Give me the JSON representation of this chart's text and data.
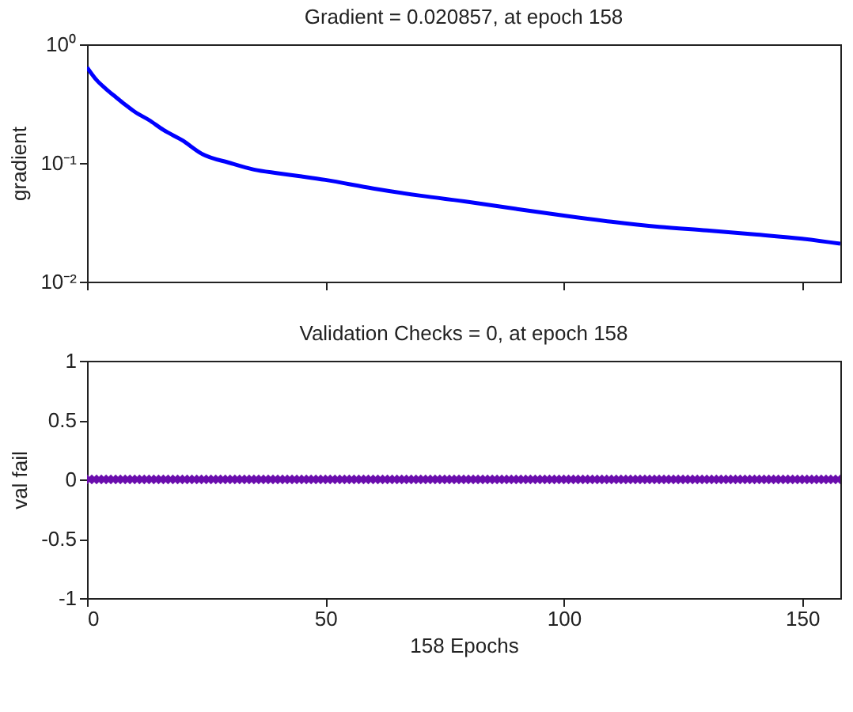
{
  "chart_data": [
    {
      "type": "line",
      "title": "Gradient = 0.020857, at epoch 158",
      "ylabel": "gradient",
      "log": "y",
      "xlim": [
        0,
        158
      ],
      "xticks": [
        0,
        50,
        100,
        150
      ],
      "ylim": [
        0.01,
        1
      ],
      "yticks": [
        {
          "value": 0.01,
          "label": "10⁻²"
        },
        {
          "value": 0.1,
          "label": "10⁻¹"
        },
        {
          "value": 1,
          "label": "10⁰"
        }
      ],
      "tick_labels": "y",
      "grid": false,
      "series": [
        {
          "color": "#0000ff",
          "x": [
            0,
            2,
            4,
            6,
            8,
            10,
            13,
            16,
            20,
            24,
            30,
            35,
            40,
            45,
            50,
            60,
            70,
            80,
            90,
            100,
            110,
            120,
            130,
            140,
            150,
            158
          ],
          "values": [
            0.64,
            0.5,
            0.42,
            0.36,
            0.31,
            0.27,
            0.23,
            0.19,
            0.155,
            0.12,
            0.1,
            0.088,
            0.082,
            0.077,
            0.072,
            0.061,
            0.053,
            0.047,
            0.041,
            0.036,
            0.032,
            0.029,
            0.027,
            0.025,
            0.023,
            0.020857
          ]
        }
      ]
    },
    {
      "type": "scatter",
      "title": "Validation Checks = 0, at epoch 158",
      "xlabel": "158 Epochs",
      "ylabel": "val fail",
      "xlim": [
        0,
        158
      ],
      "xticks": [
        0,
        50,
        100,
        150
      ],
      "ylim": [
        -1,
        1
      ],
      "yticks": [
        -1,
        -0.5,
        0,
        0.5,
        1
      ],
      "grid": false,
      "marker": "diamond",
      "series": [
        {
          "color": "#6a0dad",
          "x": [
            0,
            1,
            2,
            3,
            4,
            5,
            6,
            7,
            8,
            9,
            10,
            11,
            12,
            13,
            14,
            15,
            16,
            17,
            18,
            19,
            20,
            21,
            22,
            23,
            24,
            25,
            26,
            27,
            28,
            29,
            30,
            31,
            32,
            33,
            34,
            35,
            36,
            37,
            38,
            39,
            40,
            41,
            42,
            43,
            44,
            45,
            46,
            47,
            48,
            49,
            50,
            51,
            52,
            53,
            54,
            55,
            56,
            57,
            58,
            59,
            60,
            61,
            62,
            63,
            64,
            65,
            66,
            67,
            68,
            69,
            70,
            71,
            72,
            73,
            74,
            75,
            76,
            77,
            78,
            79,
            80,
            81,
            82,
            83,
            84,
            85,
            86,
            87,
            88,
            89,
            90,
            91,
            92,
            93,
            94,
            95,
            96,
            97,
            98,
            99,
            100,
            101,
            102,
            103,
            104,
            105,
            106,
            107,
            108,
            109,
            110,
            111,
            112,
            113,
            114,
            115,
            116,
            117,
            118,
            119,
            120,
            121,
            122,
            123,
            124,
            125,
            126,
            127,
            128,
            129,
            130,
            131,
            132,
            133,
            134,
            135,
            136,
            137,
            138,
            139,
            140,
            141,
            142,
            143,
            144,
            145,
            146,
            147,
            148,
            149,
            150,
            151,
            152,
            153,
            154,
            155,
            156,
            157,
            158
          ],
          "values": [
            0,
            0,
            0,
            0,
            0,
            0,
            0,
            0,
            0,
            0,
            0,
            0,
            0,
            0,
            0,
            0,
            0,
            0,
            0,
            0,
            0,
            0,
            0,
            0,
            0,
            0,
            0,
            0,
            0,
            0,
            0,
            0,
            0,
            0,
            0,
            0,
            0,
            0,
            0,
            0,
            0,
            0,
            0,
            0,
            0,
            0,
            0,
            0,
            0,
            0,
            0,
            0,
            0,
            0,
            0,
            0,
            0,
            0,
            0,
            0,
            0,
            0,
            0,
            0,
            0,
            0,
            0,
            0,
            0,
            0,
            0,
            0,
            0,
            0,
            0,
            0,
            0,
            0,
            0,
            0,
            0,
            0,
            0,
            0,
            0,
            0,
            0,
            0,
            0,
            0,
            0,
            0,
            0,
            0,
            0,
            0,
            0,
            0,
            0,
            0,
            0,
            0,
            0,
            0,
            0,
            0,
            0,
            0,
            0,
            0,
            0,
            0,
            0,
            0,
            0,
            0,
            0,
            0,
            0,
            0,
            0,
            0,
            0,
            0,
            0,
            0,
            0,
            0,
            0,
            0,
            0,
            0,
            0,
            0,
            0,
            0,
            0,
            0,
            0,
            0,
            0,
            0,
            0,
            0,
            0,
            0,
            0,
            0,
            0,
            0,
            0,
            0,
            0,
            0,
            0,
            0,
            0,
            0,
            0
          ]
        }
      ]
    }
  ]
}
